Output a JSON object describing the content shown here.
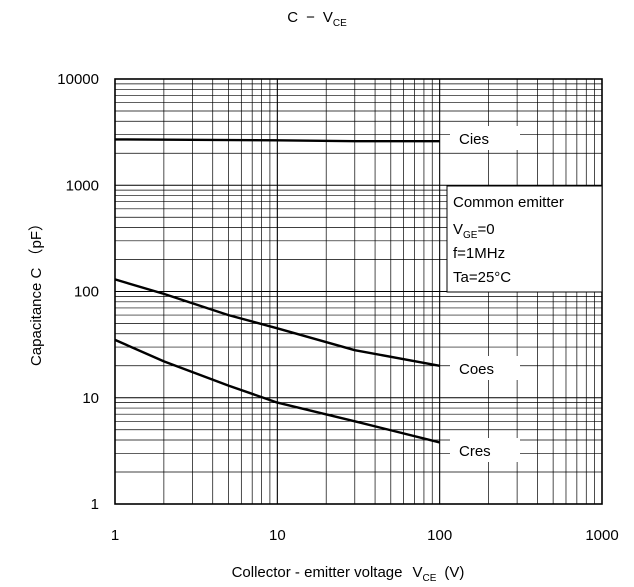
{
  "chart_data": {
    "type": "line",
    "title": {
      "main": "C",
      "dash": "−",
      "var": "V",
      "sub": "CE"
    },
    "xlabel": {
      "main": "Collector - emitter voltage",
      "var": "V",
      "sub": "CE",
      "unit": "(V)"
    },
    "ylabel": "Capacitance  C （pF）",
    "x_scale": "log",
    "y_scale": "log",
    "xlim": [
      1,
      1000
    ],
    "ylim": [
      1,
      10000
    ],
    "x_ticks": [
      "1",
      "10",
      "100",
      "1000"
    ],
    "y_ticks": [
      "1",
      "10",
      "100",
      "1000",
      "10000"
    ],
    "grid": true,
    "series": [
      {
        "name": "Cies",
        "x": [
          1,
          10,
          30,
          100
        ],
        "y": [
          2700,
          2650,
          2600,
          2600
        ]
      },
      {
        "name": "Coes",
        "x": [
          1,
          2,
          5,
          10,
          30,
          100
        ],
        "y": [
          130,
          95,
          60,
          45,
          28,
          20
        ]
      },
      {
        "name": "Cres",
        "x": [
          1,
          2,
          5,
          10,
          30,
          100
        ],
        "y": [
          35,
          22,
          13,
          9,
          6,
          3.8
        ]
      }
    ],
    "conditions": {
      "line1": "Common emitter",
      "line2": {
        "var": "V",
        "sub": "GE",
        "rest": "=0"
      },
      "line3": "f=1MHz",
      "line4": "Ta=25°C"
    }
  }
}
